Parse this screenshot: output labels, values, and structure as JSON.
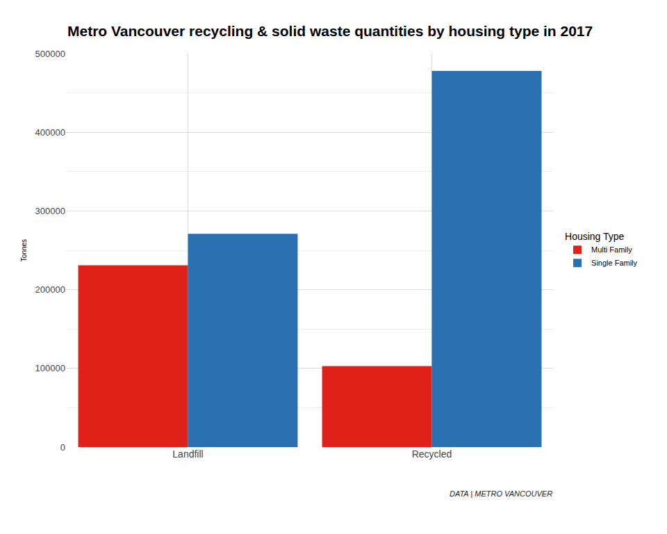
{
  "chart_data": {
    "type": "bar",
    "title": "Metro Vancouver recycling & solid waste quantities by housing type in 2017",
    "y_label": "Tonnes",
    "categories": [
      "Landfill",
      "Recycled"
    ],
    "series": [
      {
        "name": "Multi Family",
        "color": "#e0211a",
        "values": [
          231000,
          103000
        ]
      },
      {
        "name": "Single Family",
        "color": "#2a6faf",
        "values": [
          271000,
          478000
        ]
      }
    ],
    "legend_title": "Housing Type",
    "legend": "right",
    "annotations": [
      {
        "text": "DATA | METRO VANCOUVER"
      }
    ],
    "ylim": [
      0,
      500000
    ],
    "yticks": [
      0,
      100000,
      200000,
      300000,
      400000,
      500000
    ],
    "grid": true
  }
}
